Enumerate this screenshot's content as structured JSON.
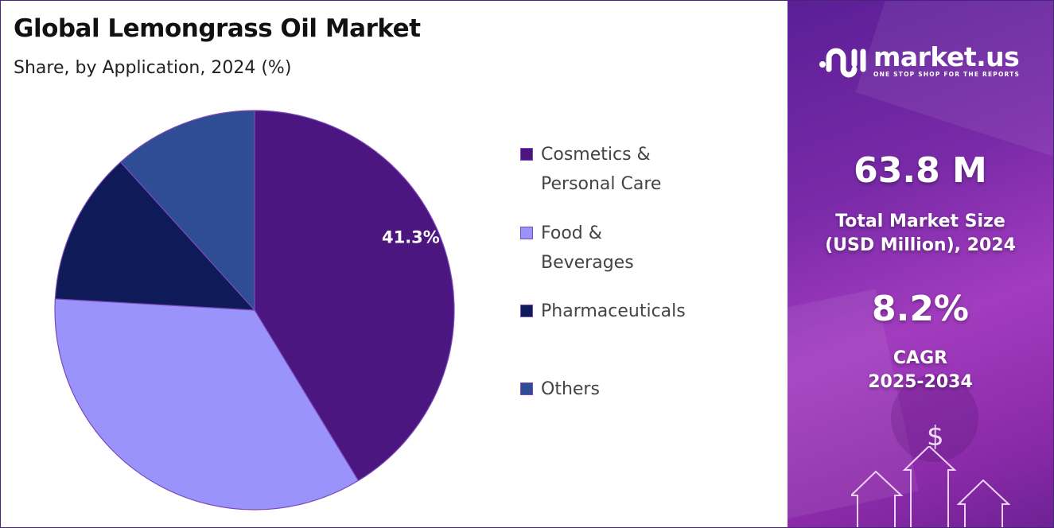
{
  "header": {
    "title": "Global Lemongrass Oil Market",
    "subtitle": "Share, by Application, 2024 (%)"
  },
  "chart_data": {
    "type": "pie",
    "categories": [
      "Cosmetics & Personal Care",
      "Food & Beverages",
      "Pharmaceuticals",
      "Others"
    ],
    "values": [
      41.3,
      34.6,
      12.4,
      11.7
    ],
    "colors": [
      "#4b1680",
      "#9a93fb",
      "#0e1b58",
      "#2e4d95"
    ],
    "data_labels": [
      "41.3%",
      "",
      "",
      ""
    ],
    "legend_position": "right",
    "legend": [
      {
        "line1": "Cosmetics &",
        "line2": "Personal Care"
      },
      {
        "line1": "Food &",
        "line2": "Beverages"
      },
      {
        "line1": "Pharmaceuticals",
        "line2": ""
      },
      {
        "line1": "Others",
        "line2": ""
      }
    ]
  },
  "panel": {
    "logo_name": "market.us",
    "logo_tagline": "ONE STOP SHOP FOR THE REPORTS",
    "market_size": "63.8 M",
    "market_size_label1": "Total Market Size",
    "market_size_label2": "(USD Million), 2024",
    "cagr": "8.2%",
    "cagr_label1": "CAGR",
    "cagr_label2": "2025-2034",
    "decor_symbol": "$"
  }
}
